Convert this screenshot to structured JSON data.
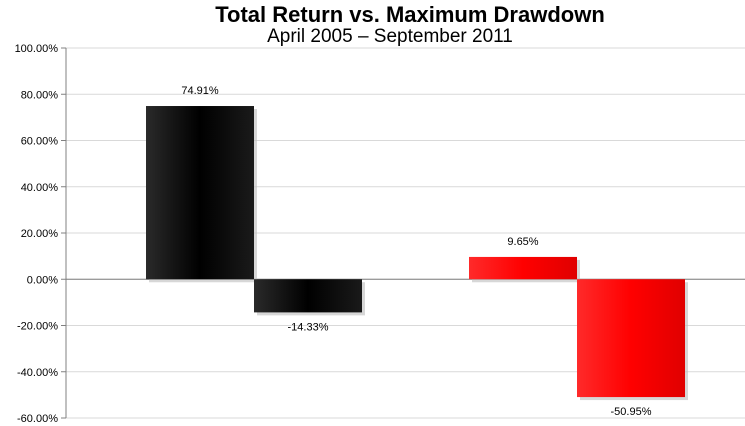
{
  "chart_data": {
    "type": "bar",
    "title": "Total Return vs. Maximum Drawdown",
    "subtitle": "April 2005 – September 2011",
    "ylim": [
      -60,
      100
    ],
    "ytick_step": 20,
    "ytick_labels": [
      "100.00%",
      "80.00%",
      "60.00%",
      "40.00%",
      "20.00%",
      "0.00%",
      "-20.00%",
      "-40.00%",
      "-60.00%"
    ],
    "grid": true,
    "legend": "none",
    "groups": [
      {
        "color": "#000000",
        "values": [
          74.91,
          -14.33
        ],
        "labels": [
          "74.91%",
          "-14.33%"
        ]
      },
      {
        "color": "#ff0000",
        "values": [
          9.65,
          -50.95
        ],
        "labels": [
          "9.65%",
          "-50.95%"
        ]
      }
    ]
  }
}
